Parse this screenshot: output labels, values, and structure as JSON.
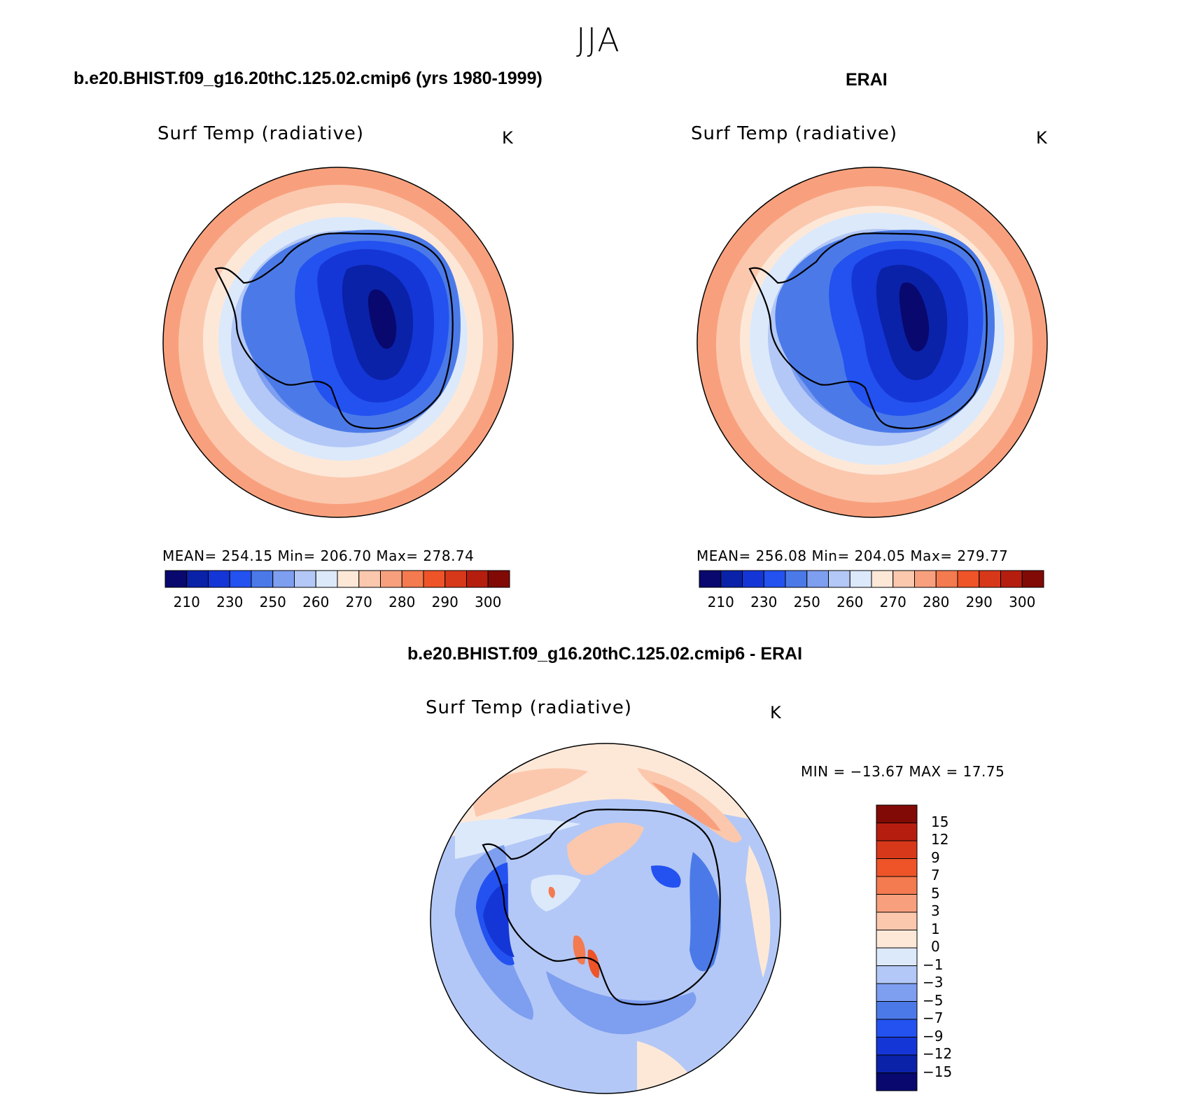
{
  "figure": {
    "season": "JJA"
  },
  "panels": {
    "model": {
      "case_title": "b.e20.BHIST.f09_g16.20thC.125.02.cmip6 (yrs 1980-1999)",
      "variable": "Surf Temp (radiative)",
      "units": "K",
      "stats": "MEAN= 254.15   Min= 206.70   Max= 278.74"
    },
    "obs": {
      "case_title": "ERAI",
      "variable": "Surf Temp (radiative)",
      "units": "K",
      "stats": "MEAN= 256.08   Min= 204.05   Max= 279.77"
    },
    "diff": {
      "case_title": "b.e20.BHIST.f09_g16.20thC.125.02.cmip6 - ERAI",
      "variable": "Surf Temp (radiative)",
      "units": "K",
      "stats": "MIN = −13.67 MAX =   17.75"
    }
  },
  "colorbars": {
    "absolute": {
      "colors": [
        "#08086e",
        "#0a22a8",
        "#1536d6",
        "#2352f0",
        "#4b7ae8",
        "#7e9ef0",
        "#b3c8f6",
        "#dce9fb",
        "#fde8d8",
        "#fbc8ae",
        "#f8a07d",
        "#f47a4f",
        "#ee5428",
        "#d8381a",
        "#b51e0f",
        "#820a06"
      ],
      "labels": [
        "210",
        "230",
        "250",
        "260",
        "270",
        "280",
        "290",
        "300"
      ]
    },
    "difference": {
      "colors": [
        "#820a06",
        "#b51e0f",
        "#d8381a",
        "#ee5428",
        "#f47a4f",
        "#f8a07d",
        "#fbc8ae",
        "#fde8d8",
        "#dce9fb",
        "#b3c8f6",
        "#7e9ef0",
        "#4b7ae8",
        "#2352f0",
        "#1536d6",
        "#0a22a8",
        "#08086e"
      ],
      "labels": [
        "15",
        "12",
        "9",
        "7",
        "5",
        "3",
        "1",
        "0",
        "−1",
        "−3",
        "−5",
        "−7",
        "−9",
        "−12",
        "−15"
      ]
    }
  }
}
